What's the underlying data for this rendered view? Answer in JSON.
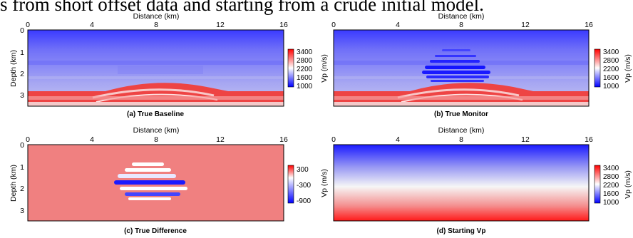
{
  "text_line": "s from short offset data and starting from a crude initial model.",
  "axis_labels": {
    "x": "Distance (km)",
    "y": "Depth (km)",
    "colorbar": "Vp (m/s)"
  },
  "x_ticks": [
    "0",
    "4",
    "8",
    "12",
    "16"
  ],
  "y_ticks": [
    "0",
    "1",
    "2",
    "3"
  ],
  "panels": [
    {
      "id": "a",
      "caption": "(a) True Baseline",
      "colorbar_ticks": [
        "3400",
        "2800",
        "2200",
        "1600",
        "1000"
      ]
    },
    {
      "id": "b",
      "caption": "(b) True Monitor",
      "colorbar_ticks": [
        "3400",
        "2800",
        "2200",
        "1600",
        "1000"
      ]
    },
    {
      "id": "c",
      "caption": "(c) True Difference",
      "colorbar_ticks": [
        "300",
        "-300",
        "-900"
      ]
    },
    {
      "id": "d",
      "caption": "(d) Starting Vp",
      "colorbar_ticks": [
        "3400",
        "2800",
        "2200",
        "1600",
        "1000"
      ]
    }
  ],
  "colors": {
    "low": "#0000ff",
    "mid": "#ffffff",
    "high": "#ff0000",
    "diff_background": "#f08080"
  }
}
